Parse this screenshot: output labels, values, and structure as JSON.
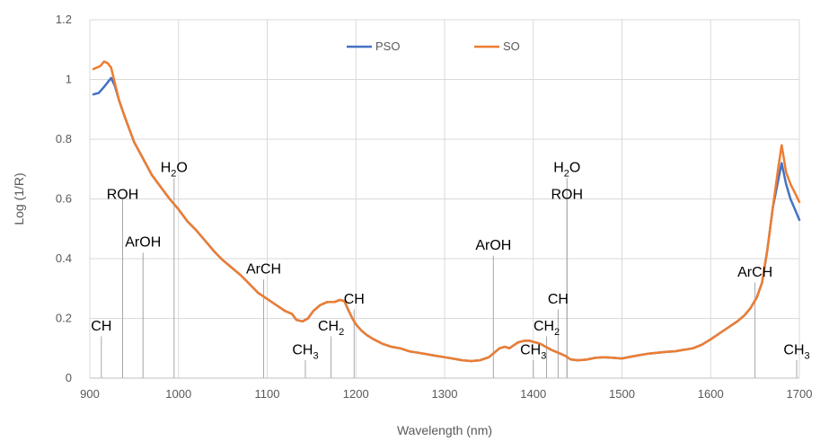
{
  "chart_data": {
    "type": "line",
    "title": "",
    "xlabel": "Wavelength (nm)",
    "ylabel": "Log (1/R)",
    "xlim": [
      900,
      1700
    ],
    "ylim": [
      0,
      1.2
    ],
    "xticks": [
      900,
      1000,
      1100,
      1200,
      1300,
      1400,
      1500,
      1600,
      1700
    ],
    "yticks": [
      "0",
      "0.2",
      "0.4",
      "0.6",
      "0.8",
      "1",
      "1.2"
    ],
    "grid": "both",
    "legend_position": "top",
    "series": [
      {
        "name": "PSO",
        "color": "#4472c4",
        "points": [
          [
            904,
            0.95
          ],
          [
            910,
            0.955
          ],
          [
            916,
            0.975
          ],
          [
            920,
            0.99
          ],
          [
            924,
            1.005
          ],
          [
            928,
            0.98
          ],
          [
            933,
            0.93
          ],
          [
            940,
            0.87
          ],
          [
            950,
            0.79
          ],
          [
            960,
            0.735
          ],
          [
            970,
            0.68
          ],
          [
            980,
            0.64
          ],
          [
            990,
            0.6
          ],
          [
            1000,
            0.565
          ],
          [
            1010,
            0.525
          ],
          [
            1020,
            0.495
          ],
          [
            1030,
            0.46
          ],
          [
            1040,
            0.425
          ],
          [
            1050,
            0.395
          ],
          [
            1060,
            0.37
          ],
          [
            1070,
            0.345
          ],
          [
            1080,
            0.315
          ],
          [
            1090,
            0.285
          ],
          [
            1100,
            0.265
          ],
          [
            1110,
            0.245
          ],
          [
            1120,
            0.225
          ],
          [
            1128,
            0.215
          ],
          [
            1133,
            0.195
          ],
          [
            1140,
            0.19
          ],
          [
            1146,
            0.2
          ],
          [
            1152,
            0.225
          ],
          [
            1160,
            0.245
          ],
          [
            1168,
            0.255
          ],
          [
            1176,
            0.255
          ],
          [
            1182,
            0.262
          ],
          [
            1187,
            0.258
          ],
          [
            1192,
            0.225
          ],
          [
            1196,
            0.2
          ],
          [
            1200,
            0.18
          ],
          [
            1206,
            0.16
          ],
          [
            1212,
            0.145
          ],
          [
            1220,
            0.13
          ],
          [
            1230,
            0.115
          ],
          [
            1240,
            0.105
          ],
          [
            1250,
            0.1
          ],
          [
            1260,
            0.09
          ],
          [
            1270,
            0.085
          ],
          [
            1280,
            0.08
          ],
          [
            1290,
            0.075
          ],
          [
            1300,
            0.07
          ],
          [
            1310,
            0.065
          ],
          [
            1320,
            0.06
          ],
          [
            1330,
            0.057
          ],
          [
            1340,
            0.06
          ],
          [
            1350,
            0.07
          ],
          [
            1356,
            0.085
          ],
          [
            1362,
            0.1
          ],
          [
            1368,
            0.105
          ],
          [
            1373,
            0.1
          ],
          [
            1378,
            0.11
          ],
          [
            1383,
            0.12
          ],
          [
            1390,
            0.125
          ],
          [
            1396,
            0.125
          ],
          [
            1402,
            0.12
          ],
          [
            1408,
            0.115
          ],
          [
            1414,
            0.105
          ],
          [
            1420,
            0.095
          ],
          [
            1428,
            0.085
          ],
          [
            1436,
            0.075
          ],
          [
            1442,
            0.063
          ],
          [
            1450,
            0.06
          ],
          [
            1460,
            0.062
          ],
          [
            1470,
            0.068
          ],
          [
            1480,
            0.07
          ],
          [
            1490,
            0.068
          ],
          [
            1500,
            0.066
          ],
          [
            1510,
            0.072
          ],
          [
            1520,
            0.077
          ],
          [
            1530,
            0.082
          ],
          [
            1540,
            0.085
          ],
          [
            1550,
            0.088
          ],
          [
            1560,
            0.09
          ],
          [
            1570,
            0.095
          ],
          [
            1580,
            0.1
          ],
          [
            1590,
            0.112
          ],
          [
            1600,
            0.13
          ],
          [
            1610,
            0.15
          ],
          [
            1620,
            0.17
          ],
          [
            1630,
            0.19
          ],
          [
            1638,
            0.21
          ],
          [
            1645,
            0.235
          ],
          [
            1652,
            0.27
          ],
          [
            1658,
            0.32
          ],
          [
            1664,
            0.43
          ],
          [
            1670,
            0.57
          ],
          [
            1676,
            0.66
          ],
          [
            1680,
            0.72
          ],
          [
            1685,
            0.65
          ],
          [
            1690,
            0.6
          ],
          [
            1695,
            0.565
          ],
          [
            1700,
            0.53
          ]
        ]
      },
      {
        "name": "SO",
        "color": "#ed7d31",
        "points": [
          [
            904,
            1.035
          ],
          [
            908,
            1.04
          ],
          [
            912,
            1.045
          ],
          [
            916,
            1.06
          ],
          [
            920,
            1.055
          ],
          [
            924,
            1.04
          ],
          [
            928,
            0.99
          ],
          [
            933,
            0.93
          ],
          [
            940,
            0.87
          ],
          [
            950,
            0.79
          ],
          [
            960,
            0.735
          ],
          [
            970,
            0.68
          ],
          [
            980,
            0.64
          ],
          [
            990,
            0.6
          ],
          [
            1000,
            0.565
          ],
          [
            1010,
            0.525
          ],
          [
            1020,
            0.495
          ],
          [
            1030,
            0.46
          ],
          [
            1040,
            0.425
          ],
          [
            1050,
            0.395
          ],
          [
            1060,
            0.37
          ],
          [
            1070,
            0.345
          ],
          [
            1080,
            0.315
          ],
          [
            1090,
            0.285
          ],
          [
            1100,
            0.265
          ],
          [
            1110,
            0.245
          ],
          [
            1120,
            0.225
          ],
          [
            1128,
            0.215
          ],
          [
            1133,
            0.195
          ],
          [
            1140,
            0.19
          ],
          [
            1146,
            0.2
          ],
          [
            1152,
            0.225
          ],
          [
            1160,
            0.245
          ],
          [
            1168,
            0.255
          ],
          [
            1176,
            0.255
          ],
          [
            1182,
            0.262
          ],
          [
            1187,
            0.258
          ],
          [
            1192,
            0.225
          ],
          [
            1196,
            0.2
          ],
          [
            1200,
            0.18
          ],
          [
            1206,
            0.16
          ],
          [
            1212,
            0.145
          ],
          [
            1220,
            0.13
          ],
          [
            1230,
            0.115
          ],
          [
            1240,
            0.105
          ],
          [
            1250,
            0.1
          ],
          [
            1260,
            0.09
          ],
          [
            1270,
            0.085
          ],
          [
            1280,
            0.08
          ],
          [
            1290,
            0.075
          ],
          [
            1300,
            0.07
          ],
          [
            1310,
            0.065
          ],
          [
            1320,
            0.06
          ],
          [
            1330,
            0.057
          ],
          [
            1340,
            0.06
          ],
          [
            1350,
            0.07
          ],
          [
            1356,
            0.085
          ],
          [
            1362,
            0.1
          ],
          [
            1368,
            0.105
          ],
          [
            1373,
            0.1
          ],
          [
            1378,
            0.11
          ],
          [
            1383,
            0.12
          ],
          [
            1390,
            0.125
          ],
          [
            1396,
            0.125
          ],
          [
            1402,
            0.12
          ],
          [
            1408,
            0.115
          ],
          [
            1414,
            0.105
          ],
          [
            1420,
            0.095
          ],
          [
            1428,
            0.085
          ],
          [
            1436,
            0.075
          ],
          [
            1442,
            0.063
          ],
          [
            1450,
            0.06
          ],
          [
            1460,
            0.062
          ],
          [
            1470,
            0.068
          ],
          [
            1480,
            0.07
          ],
          [
            1490,
            0.068
          ],
          [
            1500,
            0.066
          ],
          [
            1510,
            0.072
          ],
          [
            1520,
            0.077
          ],
          [
            1530,
            0.082
          ],
          [
            1540,
            0.085
          ],
          [
            1550,
            0.088
          ],
          [
            1560,
            0.09
          ],
          [
            1570,
            0.095
          ],
          [
            1580,
            0.1
          ],
          [
            1590,
            0.112
          ],
          [
            1600,
            0.13
          ],
          [
            1610,
            0.15
          ],
          [
            1620,
            0.17
          ],
          [
            1630,
            0.19
          ],
          [
            1638,
            0.21
          ],
          [
            1645,
            0.235
          ],
          [
            1652,
            0.27
          ],
          [
            1658,
            0.32
          ],
          [
            1664,
            0.43
          ],
          [
            1670,
            0.57
          ],
          [
            1676,
            0.7
          ],
          [
            1680,
            0.78
          ],
          [
            1685,
            0.69
          ],
          [
            1690,
            0.65
          ],
          [
            1695,
            0.62
          ],
          [
            1700,
            0.59
          ]
        ]
      }
    ],
    "annotations": [
      {
        "label": "CH",
        "sub": "",
        "x": 913,
        "y_label": 0.16,
        "y_line_top": 0.14
      },
      {
        "label": "ROH",
        "sub": "",
        "x": 937,
        "y_label": 0.6,
        "y_line_top": 0.6
      },
      {
        "label": "ArOH",
        "sub": "",
        "x": 960,
        "y_label": 0.44,
        "y_line_top": 0.42
      },
      {
        "label": "H",
        "sub": "2",
        "tail": "O",
        "x": 995,
        "y_label": 0.69,
        "y_line_top": 0.67
      },
      {
        "label": "ArCH",
        "sub": "",
        "x": 1096,
        "y_label": 0.35,
        "y_line_top": 0.33
      },
      {
        "label": "CH",
        "sub": "3",
        "x": 1143,
        "y_label": 0.08,
        "y_line_top": 0.06
      },
      {
        "label": "CH",
        "sub": "2",
        "x": 1172,
        "y_label": 0.16,
        "y_line_top": 0.14
      },
      {
        "label": "CH",
        "sub": "",
        "x": 1198,
        "y_label": 0.25,
        "y_line_top": 0.23
      },
      {
        "label": "ArOH",
        "sub": "",
        "x": 1355,
        "y_label": 0.43,
        "y_line_top": 0.41
      },
      {
        "label": "CH",
        "sub": "3",
        "x": 1400,
        "y_label": 0.08,
        "y_line_top": 0.06
      },
      {
        "label": "CH",
        "sub": "2",
        "x": 1415,
        "y_label": 0.16,
        "y_line_top": 0.14
      },
      {
        "label": "CH",
        "sub": "",
        "x": 1428,
        "y_label": 0.25,
        "y_line_top": 0.23
      },
      {
        "label": "H",
        "sub": "2",
        "tail": "O",
        "x": 1438,
        "y_label": 0.69,
        "y_line_top": 0.67
      },
      {
        "label": "ROH",
        "sub": "",
        "x": 1438,
        "y_label": 0.6,
        "y_line_top": 0.6
      },
      {
        "label": "ArCH",
        "sub": "",
        "x": 1650,
        "y_label": 0.34,
        "y_line_top": 0.32
      },
      {
        "label": "CH",
        "sub": "3",
        "x": 1697,
        "y_label": 0.08,
        "y_line_top": 0.06
      }
    ]
  }
}
